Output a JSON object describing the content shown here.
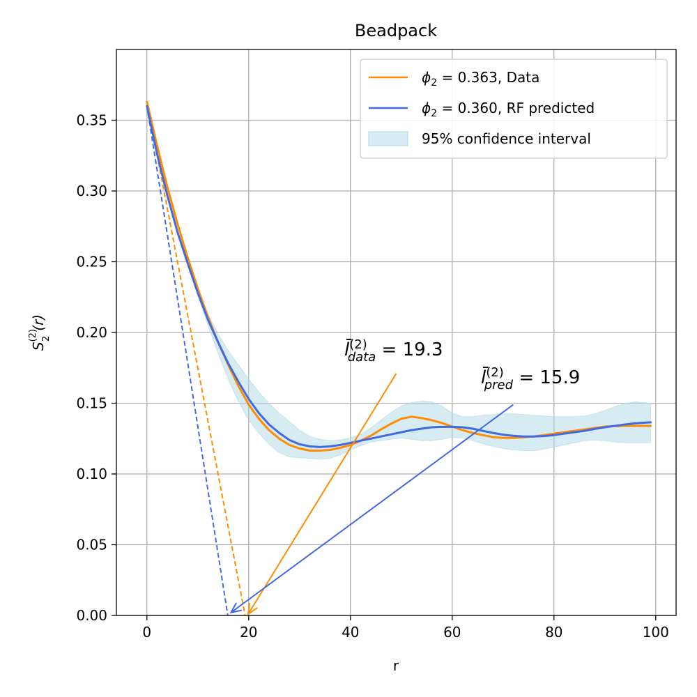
{
  "chart_data": {
    "type": "line",
    "title": "Beadpack",
    "xlabel": "r",
    "ylabel": {
      "base": "S",
      "sup": "(2)",
      "sub": "2",
      "arg": "(r)"
    },
    "xlim": [
      -6,
      104
    ],
    "ylim": [
      0,
      0.4
    ],
    "grid": true,
    "xticks": [
      0,
      20,
      40,
      60,
      80,
      100
    ],
    "xtick_labels": [
      "0",
      "20",
      "40",
      "60",
      "80",
      "100"
    ],
    "yticks": [
      0.0,
      0.05,
      0.1,
      0.15,
      0.2,
      0.25,
      0.3,
      0.35
    ],
    "ytick_labels": [
      "0.00",
      "0.05",
      "0.10",
      "0.15",
      "0.20",
      "0.25",
      "0.30",
      "0.35"
    ],
    "legend": {
      "placement": "top-right",
      "entries": [
        {
          "phi_label": "ϕ",
          "phi_sub": "2",
          "text": " = 0.363, Data",
          "kind": "line",
          "color": "#ff8c00"
        },
        {
          "phi_label": "ϕ",
          "phi_sub": "2",
          "text": " = 0.360, RF predicted",
          "kind": "line",
          "color": "#4169e1"
        },
        {
          "text": "95% confidence interval",
          "kind": "patch",
          "color": "#add8e6"
        }
      ]
    },
    "series": [
      {
        "name": "ϕ2 = 0.363, Data",
        "color": "#ff8c00",
        "x": [
          0,
          2,
          4,
          6,
          8,
          10,
          12,
          14,
          16,
          18,
          20,
          22,
          24,
          26,
          28,
          30,
          32,
          34,
          36,
          38,
          40,
          42,
          44,
          46,
          48,
          50,
          52,
          54,
          56,
          58,
          60,
          62,
          64,
          66,
          68,
          70,
          72,
          74,
          76,
          78,
          80,
          82,
          84,
          86,
          88,
          90,
          92,
          94,
          96,
          99
        ],
        "y": [
          0.363,
          0.332,
          0.303,
          0.277,
          0.253,
          0.231,
          0.211,
          0.193,
          0.177,
          0.162,
          0.149,
          0.139,
          0.131,
          0.125,
          0.1205,
          0.118,
          0.1165,
          0.1165,
          0.117,
          0.1185,
          0.1205,
          0.1235,
          0.127,
          0.1315,
          0.1355,
          0.139,
          0.1405,
          0.1395,
          0.138,
          0.136,
          0.1335,
          0.131,
          0.129,
          0.1275,
          0.126,
          0.1255,
          0.1255,
          0.126,
          0.1265,
          0.1275,
          0.1285,
          0.1295,
          0.1305,
          0.1315,
          0.1325,
          0.1335,
          0.1338,
          0.134,
          0.134,
          0.134
        ]
      },
      {
        "name": "ϕ2 = 0.360, RF predicted",
        "color": "#4169e1",
        "x": [
          0,
          2,
          4,
          6,
          8,
          10,
          12,
          14,
          16,
          18,
          20,
          22,
          24,
          26,
          28,
          30,
          32,
          34,
          36,
          38,
          40,
          42,
          44,
          46,
          48,
          50,
          52,
          54,
          56,
          58,
          60,
          62,
          64,
          66,
          68,
          70,
          72,
          74,
          76,
          78,
          80,
          82,
          84,
          86,
          88,
          90,
          92,
          94,
          96,
          99
        ],
        "y": [
          0.36,
          0.326,
          0.297,
          0.271,
          0.249,
          0.228,
          0.209,
          0.193,
          0.178,
          0.165,
          0.153,
          0.143,
          0.135,
          0.129,
          0.124,
          0.121,
          0.1195,
          0.119,
          0.1195,
          0.1205,
          0.122,
          0.1235,
          0.125,
          0.1265,
          0.128,
          0.1295,
          0.131,
          0.132,
          0.133,
          0.1333,
          0.1333,
          0.133,
          0.132,
          0.1305,
          0.129,
          0.1278,
          0.127,
          0.1265,
          0.1265,
          0.1268,
          0.1275,
          0.1285,
          0.1295,
          0.1305,
          0.1318,
          0.133,
          0.134,
          0.135,
          0.1358,
          0.1365
        ]
      }
    ],
    "confidence_interval": {
      "name": "95% confidence interval",
      "color": "#add8e6",
      "alpha": 0.5,
      "x": [
        0,
        2,
        4,
        6,
        8,
        10,
        12,
        14,
        16,
        18,
        20,
        22,
        24,
        26,
        28,
        30,
        32,
        34,
        36,
        38,
        40,
        42,
        44,
        46,
        48,
        50,
        52,
        54,
        56,
        58,
        60,
        62,
        64,
        66,
        68,
        70,
        72,
        74,
        76,
        78,
        80,
        82,
        84,
        86,
        88,
        90,
        92,
        94,
        96,
        99
      ],
      "lower": [
        0.36,
        0.326,
        0.297,
        0.271,
        0.248,
        0.226,
        0.205,
        0.185,
        0.167,
        0.151,
        0.138,
        0.129,
        0.121,
        0.115,
        0.112,
        0.1115,
        0.111,
        0.1105,
        0.111,
        0.1135,
        0.117,
        0.12,
        0.1225,
        0.1235,
        0.1245,
        0.1255,
        0.1245,
        0.1235,
        0.1235,
        0.1245,
        0.126,
        0.1255,
        0.1235,
        0.1215,
        0.1195,
        0.118,
        0.117,
        0.1165,
        0.1165,
        0.1175,
        0.119,
        0.1205,
        0.122,
        0.1235,
        0.124,
        0.1235,
        0.1225,
        0.122,
        0.122,
        0.122
      ],
      "upper": [
        0.36,
        0.326,
        0.297,
        0.272,
        0.25,
        0.23,
        0.213,
        0.199,
        0.187,
        0.177,
        0.167,
        0.158,
        0.15,
        0.143,
        0.137,
        0.131,
        0.1265,
        0.1245,
        0.1235,
        0.124,
        0.1255,
        0.128,
        0.1325,
        0.138,
        0.1435,
        0.148,
        0.1505,
        0.1515,
        0.151,
        0.148,
        0.143,
        0.1405,
        0.1405,
        0.1415,
        0.142,
        0.1425,
        0.1425,
        0.142,
        0.1415,
        0.141,
        0.1405,
        0.1405,
        0.1405,
        0.141,
        0.1425,
        0.145,
        0.1475,
        0.15,
        0.151,
        0.15
      ]
    },
    "dashed_tangents": [
      {
        "color": "#ff8c00",
        "from": [
          0,
          0.363
        ],
        "to": [
          19.3,
          0.0
        ]
      },
      {
        "color": "#4169e1",
        "from": [
          0,
          0.36
        ],
        "to": [
          15.9,
          0.0
        ]
      }
    ],
    "annotations": [
      {
        "id": "data",
        "prefix": "l̄",
        "sup": "(2)",
        "sub": "data",
        "text": " = 19.3",
        "color": "#000000",
        "text_at": [
          39,
          0.18
        ],
        "arrow_from": [
          49,
          0.171
        ],
        "arrow_to": [
          19.9,
          0.001
        ],
        "arrow_color": "#ff8c00"
      },
      {
        "id": "pred",
        "prefix": "l̄",
        "sup": "(2)",
        "sub": "pred",
        "text": " = 15.9",
        "color": "#000000",
        "text_at": [
          66,
          0.159
        ],
        "arrow_from": [
          72,
          0.149
        ],
        "arrow_to": [
          16.5,
          0.002
        ],
        "arrow_color": "#4169e1"
      }
    ]
  }
}
